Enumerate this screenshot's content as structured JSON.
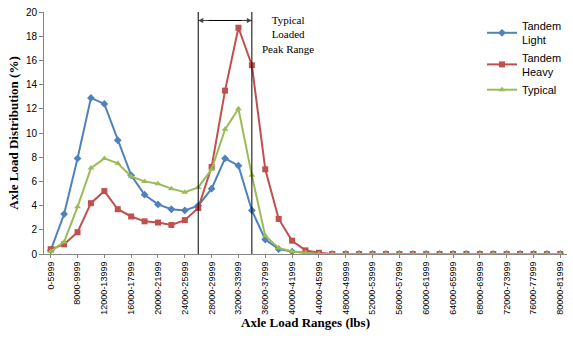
{
  "chart_data": {
    "type": "line",
    "xlabel": "Axle Load Ranges (lbs)",
    "ylabel": "Axle Load Distribution (%)",
    "categories": [
      "0-5999",
      null,
      "8000-9999",
      null,
      "12000-13999",
      null,
      "16000-17999",
      null,
      "20000-21999",
      null,
      "24000-25999",
      null,
      "28000-29999",
      null,
      "32000-33999",
      null,
      "36000-37999",
      null,
      "40000-41999",
      null,
      "44000-45999",
      null,
      "48000-49999",
      null,
      "52000-53999",
      null,
      "56000-57999",
      null,
      "60000-61999",
      null,
      "64000-65999",
      null,
      "68000-69999",
      null,
      "72000-73999",
      null,
      "76000-77999",
      null,
      "80000-81999"
    ],
    "series": [
      {
        "name": "Tandem Light",
        "color": "#4F81BD",
        "marker": "diamond",
        "line_style": "solid",
        "values": [
          0.3,
          3.3,
          7.9,
          12.9,
          12.4,
          9.4,
          6.5,
          4.9,
          4.1,
          3.7,
          3.6,
          4.0,
          5.4,
          7.9,
          7.3,
          3.6,
          1.2,
          0.4,
          0.2,
          0.1,
          0,
          0,
          0,
          0,
          0,
          0,
          0,
          0,
          0,
          0,
          0,
          0,
          0,
          0,
          0,
          0,
          0,
          0,
          0
        ]
      },
      {
        "name": "Tandem Heavy",
        "color": "#C0504D",
        "marker": "square",
        "line_style": "solid",
        "values": [
          0.4,
          0.8,
          1.8,
          4.2,
          5.2,
          3.7,
          3.1,
          2.7,
          2.6,
          2.4,
          2.8,
          3.8,
          7.2,
          13.5,
          18.7,
          15.6,
          7.0,
          2.9,
          1.1,
          0.3,
          0.1,
          0,
          0,
          0,
          0,
          0,
          0,
          0,
          0,
          0,
          0,
          0,
          0,
          0,
          0,
          0,
          0,
          0,
          0
        ]
      },
      {
        "name": "Typical",
        "color": "#9BBB59",
        "marker": "triangle-up",
        "line_style": "solid",
        "values": [
          0.2,
          1.0,
          3.9,
          7.1,
          7.9,
          7.5,
          6.4,
          6.0,
          5.8,
          5.4,
          5.1,
          5.5,
          7.0,
          10.3,
          12.0,
          6.5,
          1.5,
          0.5,
          0.2,
          0.1,
          0,
          0,
          0,
          0,
          0,
          0,
          0,
          0,
          0,
          0,
          0,
          0,
          0,
          0,
          0,
          0,
          0,
          0,
          0
        ]
      }
    ],
    "ylim": [
      0,
      20
    ],
    "yticks": [
      0,
      2,
      4,
      6,
      8,
      10,
      12,
      14,
      16,
      18,
      20
    ],
    "grid": false,
    "legend": "upper right",
    "annotations": [
      {
        "text": "Typical\nLoaded\nPeak Range",
        "x_range": [
          11,
          15
        ]
      }
    ]
  }
}
